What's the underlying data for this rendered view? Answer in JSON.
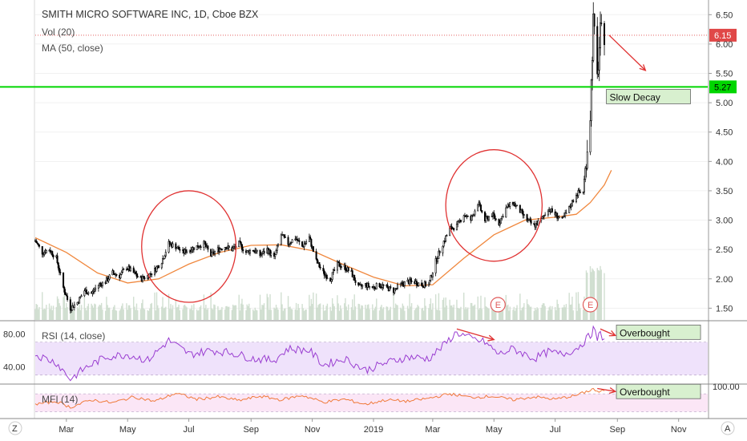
{
  "header": {
    "symbol_line": "SMITH MICRO SOFTWARE INC, 1D, Cboe BZX",
    "vol_label": "Vol (20)",
    "ma_label": "MA (50, close)"
  },
  "colors": {
    "candle_up": "#ffffff",
    "candle_down": "#000000",
    "ma_line": "#f0883e",
    "support_line": "#00d600",
    "last_price": "#e04848",
    "rsi_line": "#9a3ed1",
    "rsi_band": "#efe2fb",
    "mfi_line": "#f07a3a",
    "mfi_band": "#fbe6f6",
    "annotation": "#e03232",
    "note_box": "#d8f0cf",
    "volume": "#c9d9c9",
    "earnings_marker": "#e05a5a"
  },
  "chart_data": [
    {
      "type": "candlestick",
      "name": "price",
      "title": "SMITH MICRO SOFTWARE INC, 1D, Cboe BZX",
      "x_axis": {
        "type": "date",
        "range": [
          "2018-01-29",
          "2019-11-30"
        ],
        "tick_labels": [
          "Mar",
          "May",
          "Jul",
          "Sep",
          "Nov",
          "2019",
          "Mar",
          "May",
          "Jul",
          "Sep",
          "Nov"
        ],
        "tick_dates": [
          "2018-03-01",
          "2018-05-01",
          "2018-07-01",
          "2018-09-01",
          "2018-11-01",
          "2019-01-01",
          "2019-03-01",
          "2019-05-01",
          "2019-07-01",
          "2019-09-01",
          "2019-11-01"
        ]
      },
      "y_axis": {
        "range": [
          1.3,
          6.75
        ],
        "tick_labels": [
          "1.50",
          "2.00",
          "2.50",
          "3.00",
          "3.50",
          "4.00",
          "4.50",
          "5.00",
          "5.50",
          "6.00",
          "6.50"
        ],
        "ticks": [
          1.5,
          2.0,
          2.5,
          3.0,
          3.5,
          4.0,
          4.5,
          5.0,
          5.5,
          6.0,
          6.5
        ]
      },
      "close_points": [
        [
          "2018-01-29",
          2.65
        ],
        [
          "2018-02-05",
          2.45
        ],
        [
          "2018-02-12",
          2.5
        ],
        [
          "2018-02-19",
          2.35
        ],
        [
          "2018-02-26",
          1.85
        ],
        [
          "2018-03-05",
          1.5
        ],
        [
          "2018-03-12",
          1.6
        ],
        [
          "2018-03-19",
          1.8
        ],
        [
          "2018-03-26",
          1.75
        ],
        [
          "2018-04-02",
          1.9
        ],
        [
          "2018-04-09",
          1.95
        ],
        [
          "2018-04-16",
          2.1
        ],
        [
          "2018-04-23",
          2.05
        ],
        [
          "2018-04-30",
          2.2
        ],
        [
          "2018-05-07",
          2.1
        ],
        [
          "2018-05-14",
          2.0
        ],
        [
          "2018-05-21",
          2.05
        ],
        [
          "2018-05-28",
          2.15
        ],
        [
          "2018-06-04",
          2.3
        ],
        [
          "2018-06-11",
          2.6
        ],
        [
          "2018-06-18",
          2.55
        ],
        [
          "2018-06-25",
          2.45
        ],
        [
          "2018-07-02",
          2.5
        ],
        [
          "2018-07-09",
          2.55
        ],
        [
          "2018-07-16",
          2.6
        ],
        [
          "2018-07-23",
          2.4
        ],
        [
          "2018-07-30",
          2.5
        ],
        [
          "2018-08-06",
          2.55
        ],
        [
          "2018-08-13",
          2.5
        ],
        [
          "2018-08-20",
          2.6
        ],
        [
          "2018-08-27",
          2.45
        ],
        [
          "2018-09-03",
          2.5
        ],
        [
          "2018-09-10",
          2.4
        ],
        [
          "2018-09-17",
          2.5
        ],
        [
          "2018-09-24",
          2.35
        ],
        [
          "2018-10-01",
          2.75
        ],
        [
          "2018-10-08",
          2.6
        ],
        [
          "2018-10-15",
          2.7
        ],
        [
          "2018-10-22",
          2.55
        ],
        [
          "2018-10-29",
          2.7
        ],
        [
          "2018-11-05",
          2.3
        ],
        [
          "2018-11-12",
          2.1
        ],
        [
          "2018-11-19",
          2.0
        ],
        [
          "2018-11-26",
          2.25
        ],
        [
          "2018-12-03",
          2.2
        ],
        [
          "2018-12-10",
          2.1
        ],
        [
          "2018-12-17",
          1.85
        ],
        [
          "2018-12-24",
          1.9
        ],
        [
          "2018-12-31",
          1.85
        ],
        [
          "2019-01-07",
          1.9
        ],
        [
          "2019-01-14",
          1.85
        ],
        [
          "2019-01-21",
          1.8
        ],
        [
          "2019-01-28",
          1.9
        ],
        [
          "2019-02-04",
          1.95
        ],
        [
          "2019-02-11",
          1.95
        ],
        [
          "2019-02-18",
          1.9
        ],
        [
          "2019-02-25",
          1.9
        ],
        [
          "2019-03-04",
          2.3
        ],
        [
          "2019-03-11",
          2.6
        ],
        [
          "2019-03-18",
          2.85
        ],
        [
          "2019-03-25",
          2.9
        ],
        [
          "2019-04-01",
          3.1
        ],
        [
          "2019-04-08",
          3.0
        ],
        [
          "2019-04-15",
          3.3
        ],
        [
          "2019-04-22",
          3.0
        ],
        [
          "2019-04-29",
          3.1
        ],
        [
          "2019-05-06",
          2.95
        ],
        [
          "2019-05-13",
          3.2
        ],
        [
          "2019-05-20",
          3.3
        ],
        [
          "2019-05-27",
          3.15
        ],
        [
          "2019-06-03",
          3.0
        ],
        [
          "2019-06-10",
          2.9
        ],
        [
          "2019-06-17",
          3.0
        ],
        [
          "2019-06-24",
          3.2
        ],
        [
          "2019-07-01",
          3.1
        ],
        [
          "2019-07-08",
          3.0
        ],
        [
          "2019-07-15",
          3.2
        ],
        [
          "2019-07-22",
          3.45
        ],
        [
          "2019-07-29",
          3.5
        ],
        [
          "2019-08-05",
          4.8
        ],
        [
          "2019-08-08",
          6.4
        ],
        [
          "2019-08-12",
          5.4
        ],
        [
          "2019-08-15",
          6.2
        ],
        [
          "2019-08-19",
          6.15
        ]
      ],
      "moving_average": {
        "label": "MA (50, close)",
        "points": [
          [
            "2018-01-29",
            2.7
          ],
          [
            "2018-03-01",
            2.45
          ],
          [
            "2018-04-01",
            2.1
          ],
          [
            "2018-05-01",
            1.93
          ],
          [
            "2018-06-01",
            2.0
          ],
          [
            "2018-07-01",
            2.25
          ],
          [
            "2018-08-01",
            2.45
          ],
          [
            "2018-09-01",
            2.57
          ],
          [
            "2018-10-01",
            2.58
          ],
          [
            "2018-11-01",
            2.48
          ],
          [
            "2018-12-01",
            2.25
          ],
          [
            "2019-01-01",
            2.03
          ],
          [
            "2019-02-01",
            1.88
          ],
          [
            "2019-03-01",
            1.9
          ],
          [
            "2019-04-01",
            2.35
          ],
          [
            "2019-05-01",
            2.75
          ],
          [
            "2019-06-01",
            3.0
          ],
          [
            "2019-07-01",
            3.05
          ],
          [
            "2019-07-22",
            3.1
          ],
          [
            "2019-08-05",
            3.3
          ],
          [
            "2019-08-19",
            3.6
          ],
          [
            "2019-08-26",
            3.85
          ]
        ]
      },
      "last_price": {
        "value": 6.15,
        "label": "6.15"
      },
      "support_level": {
        "value": 5.27,
        "label": "5.27"
      },
      "annotations": [
        {
          "kind": "ellipse",
          "center": [
            "2018-07-01",
            2.55
          ],
          "rx_days": 47,
          "ry_value": 0.95
        },
        {
          "kind": "ellipse",
          "center": [
            "2019-05-01",
            3.25
          ],
          "rx_days": 48,
          "ry_value": 0.95
        },
        {
          "kind": "arrow",
          "from": [
            "2019-08-19",
            6.15
          ],
          "to": [
            "2019-09-29",
            5.55
          ]
        },
        {
          "kind": "note",
          "text": "Slow Decay",
          "at": [
            "2019-08-21",
            5.05
          ]
        }
      ],
      "earnings_markers": [
        {
          "label": "E",
          "date": "2019-05-05"
        },
        {
          "label": "E",
          "date": "2019-08-05"
        }
      ]
    },
    {
      "type": "line",
      "name": "rsi",
      "label": "RSI (14, close)",
      "y_axis": {
        "tick_labels": [
          "80.00",
          "40.00"
        ],
        "ticks": [
          80,
          40
        ],
        "range": [
          20,
          95
        ]
      },
      "overbought": 70,
      "oversold": 30,
      "points": [
        [
          "2018-01-29",
          55
        ],
        [
          "2018-02-19",
          45
        ],
        [
          "2018-03-05",
          25
        ],
        [
          "2018-03-19",
          38
        ],
        [
          "2018-04-09",
          52
        ],
        [
          "2018-05-01",
          55
        ],
        [
          "2018-05-21",
          48
        ],
        [
          "2018-06-11",
          72
        ],
        [
          "2018-07-02",
          55
        ],
        [
          "2018-07-23",
          60
        ],
        [
          "2018-08-13",
          57
        ],
        [
          "2018-09-03",
          50
        ],
        [
          "2018-09-24",
          48
        ],
        [
          "2018-10-08",
          62
        ],
        [
          "2018-10-29",
          60
        ],
        [
          "2018-11-12",
          42
        ],
        [
          "2018-12-03",
          50
        ],
        [
          "2018-12-24",
          36
        ],
        [
          "2019-01-14",
          45
        ],
        [
          "2019-02-04",
          52
        ],
        [
          "2019-02-25",
          50
        ],
        [
          "2019-03-11",
          65
        ],
        [
          "2019-03-25",
          82
        ],
        [
          "2019-04-08",
          74
        ],
        [
          "2019-04-22",
          70
        ],
        [
          "2019-05-06",
          55
        ],
        [
          "2019-05-20",
          62
        ],
        [
          "2019-06-10",
          50
        ],
        [
          "2019-06-24",
          58
        ],
        [
          "2019-07-08",
          55
        ],
        [
          "2019-07-22",
          62
        ],
        [
          "2019-08-05",
          78
        ],
        [
          "2019-08-08",
          86
        ],
        [
          "2019-08-12",
          74
        ],
        [
          "2019-08-15",
          80
        ],
        [
          "2019-08-19",
          74
        ]
      ],
      "annotations": [
        {
          "kind": "arrow",
          "from": [
            "2019-03-25",
            86
          ],
          "to": [
            "2019-05-01",
            73
          ]
        },
        {
          "kind": "arrow",
          "from": [
            "2019-08-15",
            86
          ],
          "to": [
            "2019-08-30",
            78
          ]
        },
        {
          "kind": "note",
          "text": "Overbought",
          "at": [
            "2019-08-31",
            82
          ]
        }
      ]
    },
    {
      "type": "line",
      "name": "mfi",
      "label": "MFI (14)",
      "y_axis": {
        "tick_labels": [
          "100.00"
        ],
        "ticks": [
          100
        ],
        "range": [
          0,
          110
        ]
      },
      "overbought": 80,
      "oversold": 20,
      "points": [
        [
          "2018-01-29",
          45
        ],
        [
          "2018-02-19",
          55
        ],
        [
          "2018-03-05",
          35
        ],
        [
          "2018-03-26",
          60
        ],
        [
          "2018-04-16",
          50
        ],
        [
          "2018-05-07",
          70
        ],
        [
          "2018-05-28",
          55
        ],
        [
          "2018-06-18",
          82
        ],
        [
          "2018-07-09",
          62
        ],
        [
          "2018-07-30",
          70
        ],
        [
          "2018-08-20",
          58
        ],
        [
          "2018-09-10",
          72
        ],
        [
          "2018-10-01",
          60
        ],
        [
          "2018-10-22",
          75
        ],
        [
          "2018-11-12",
          52
        ],
        [
          "2018-12-03",
          62
        ],
        [
          "2018-12-24",
          45
        ],
        [
          "2019-01-14",
          60
        ],
        [
          "2019-02-04",
          55
        ],
        [
          "2019-02-25",
          65
        ],
        [
          "2019-03-18",
          80
        ],
        [
          "2019-04-08",
          68
        ],
        [
          "2019-04-29",
          72
        ],
        [
          "2019-05-20",
          60
        ],
        [
          "2019-06-10",
          70
        ],
        [
          "2019-07-01",
          62
        ],
        [
          "2019-07-22",
          75
        ],
        [
          "2019-08-05",
          92
        ],
        [
          "2019-08-08",
          98
        ],
        [
          "2019-08-12",
          85
        ],
        [
          "2019-08-19",
          90
        ]
      ],
      "annotations": [
        {
          "kind": "arrow",
          "from": [
            "2019-08-12",
            98
          ],
          "to": [
            "2019-08-30",
            88
          ]
        },
        {
          "kind": "note",
          "text": "Overbought",
          "at": [
            "2019-08-31",
            88
          ]
        }
      ]
    }
  ]
}
